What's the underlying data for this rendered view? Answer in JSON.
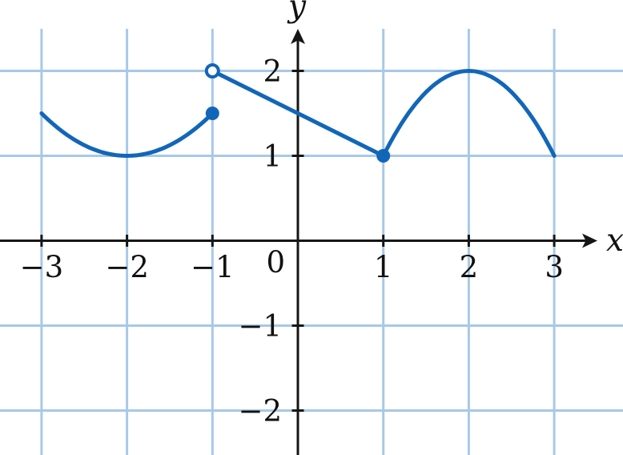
{
  "figure": {
    "description": "Graph of a piecewise-defined function on a coordinate grid"
  },
  "chart_data": {
    "type": "line",
    "title": "",
    "xlabel": "x",
    "ylabel": "y",
    "origin_label": "0",
    "grid": true,
    "axis_range": {
      "x": [
        -3.5,
        3.8
      ],
      "y": [
        -2.55,
        2.5
      ]
    },
    "x_ticks": [
      {
        "value": -3,
        "label": "−3"
      },
      {
        "value": -2,
        "label": "−2"
      },
      {
        "value": -1,
        "label": "−1"
      },
      {
        "value": 1,
        "label": "1"
      },
      {
        "value": 2,
        "label": "2"
      },
      {
        "value": 3,
        "label": "3"
      }
    ],
    "y_ticks": [
      {
        "value": -2,
        "label": "−2"
      },
      {
        "value": -1,
        "label": "−1"
      },
      {
        "value": 1,
        "label": "1"
      },
      {
        "value": 2,
        "label": "2"
      }
    ],
    "pieces": [
      {
        "name": "left-parabola",
        "kind": "quadratic",
        "a": 0.5,
        "h": -2,
        "k": 1,
        "domain": [
          -3,
          -1
        ],
        "expr": "y = 1 + 0.5(x+2)^2",
        "endpoints": [
          [
            -3,
            1.5
          ],
          [
            -1,
            1.5
          ]
        ]
      },
      {
        "name": "middle-segment",
        "kind": "line",
        "from": [
          -1,
          2
        ],
        "to": [
          1,
          1
        ],
        "expr": "y = 1.5 - 0.5x",
        "endpoints": [
          [
            -1,
            2
          ],
          [
            1,
            1
          ]
        ]
      },
      {
        "name": "right-parabola",
        "kind": "quadratic",
        "a": -1,
        "h": 2,
        "k": 2,
        "domain": [
          1,
          3
        ],
        "expr": "y = 2 - (x-2)^2",
        "endpoints": [
          [
            1,
            1
          ],
          [
            3,
            1
          ]
        ]
      }
    ],
    "markers": [
      {
        "x": -1,
        "y": 2,
        "style": "open"
      },
      {
        "x": -1,
        "y": 1.5,
        "style": "closed"
      },
      {
        "x": 1,
        "y": 1,
        "style": "closed"
      }
    ],
    "colors": {
      "curve": "#1266b8",
      "grid": "#a8c8e8",
      "axis": "#161616",
      "open_marker_fill": "#ffffff",
      "background": "#ffffff"
    }
  }
}
